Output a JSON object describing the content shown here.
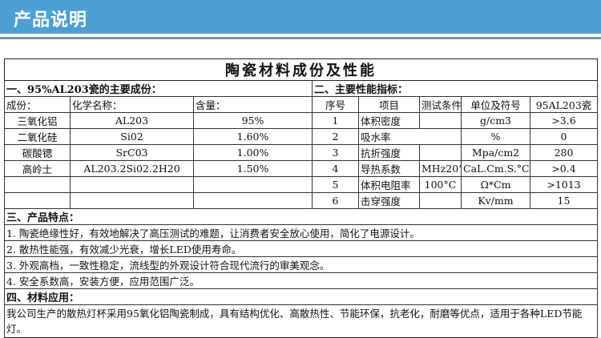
{
  "header": {
    "title": "产品说明"
  },
  "doc": {
    "title": "陶瓷材料成份及性能",
    "section1": {
      "heading": "一、95%AL203瓷的主要成份：",
      "columns": [
        "成份：",
        "化学名称：",
        "含量："
      ],
      "rows": [
        [
          "三氧化铝",
          "AL203",
          "95%"
        ],
        [
          "二氧化硅",
          "Si02",
          "1.60%"
        ],
        [
          "碳酸锶",
          "SrC03",
          "1.00%"
        ],
        [
          "高岭土",
          "AL203.2Si02.2H20",
          "1.50%"
        ]
      ]
    },
    "section2": {
      "heading": "二、主要性能指标：",
      "columns": [
        "序号",
        "项目",
        "测试条件",
        "单位及符号",
        "95AL203瓷"
      ],
      "rows": [
        [
          "1",
          "体积密度",
          "",
          "g/cm3",
          ">3.6"
        ],
        [
          "2",
          "吸水率",
          "",
          "%",
          "0"
        ],
        [
          "3",
          "抗折强度",
          "",
          "Mpa/cm2",
          "280"
        ],
        [
          "4",
          "导热系数",
          "MHz20°",
          "CaL.Cm.S.°C",
          ">0.4"
        ],
        [
          "5",
          "体积电阻率",
          "100°C",
          "Ω*Cm",
          ">1013"
        ],
        [
          "6",
          "击穿强度",
          "",
          "Kv/mm",
          "15"
        ]
      ]
    },
    "section3": {
      "heading": "三、产品特点：",
      "items": [
        "1. 陶瓷绝缘性好，有效地解决了高压测试的难题，让消费者安全放心使用，简化了电源设计。",
        "2. 散热性能强，有效减少光衰，增长LED使用寿命。",
        "3. 外观高档，一致性稳定，流线型的外观设计符合现代流行的审美观念。",
        "4. 安全系数高，安装方便，应用范围广泛。"
      ]
    },
    "section4": {
      "heading": "四、材料应用：",
      "text": "我公司生产的散热灯杯采用95氧化铝陶瓷制成，具有结构优化、高散热性、节能环保，抗老化，耐磨等优点，适用于各种LED节能灯。"
    }
  }
}
